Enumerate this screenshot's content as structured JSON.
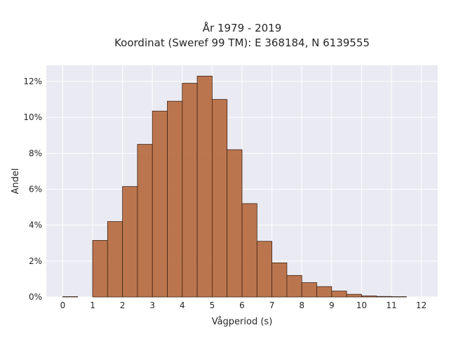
{
  "chart_data": {
    "type": "bar",
    "title": "År 1979 - 2019",
    "subtitle": "Koordinat (Sweref 99 TM): E 368184, N 6139555",
    "xlabel": "Vågperiod (s)",
    "ylabel": "Andel",
    "xlim": [
      -0.55,
      12.55
    ],
    "ylim": [
      0,
      12.9
    ],
    "grid": true,
    "x_ticks": [
      0,
      1,
      2,
      3,
      4,
      5,
      6,
      7,
      8,
      9,
      10,
      11,
      12
    ],
    "x_tick_labels": [
      "0",
      "1",
      "2",
      "3",
      "4",
      "5",
      "6",
      "7",
      "8",
      "9",
      "10",
      "11",
      "12"
    ],
    "y_ticks": [
      0,
      2,
      4,
      6,
      8,
      10,
      12
    ],
    "y_tick_labels": [
      "0%",
      "2%",
      "4%",
      "6%",
      "8%",
      "10%",
      "12%"
    ],
    "bin_width": 0.5,
    "bin_starts": [
      0,
      0.5,
      1,
      1.5,
      2,
      2.5,
      3,
      3.5,
      4,
      4.5,
      5,
      5.5,
      6,
      6.5,
      7,
      7.5,
      8,
      8.5,
      9,
      9.5,
      10,
      10.5,
      11
    ],
    "values": [
      0.02,
      0,
      3.15,
      4.2,
      6.15,
      8.5,
      10.35,
      10.9,
      11.9,
      12.3,
      11.0,
      8.2,
      5.2,
      3.1,
      1.9,
      1.2,
      0.8,
      0.58,
      0.33,
      0.15,
      0.06,
      0.03,
      0.02
    ],
    "bar_color": "#b86f45",
    "edge_color": "#3d2516"
  }
}
